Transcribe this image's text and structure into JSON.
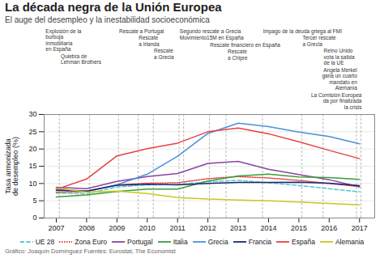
{
  "chart_data": {
    "type": "line",
    "title": "La década negra de la Unión Europea",
    "subtitle": "El auge del desempleo y la inestabilidad socioeconómica",
    "source": "Gráfico: Joaquín Domínguez  Fuentes: Eurostat, The Economist",
    "ylabel": "Tasa armonizada\nde desempleo (%)",
    "x": [
      2007,
      2008,
      2009,
      2010,
      2011,
      2012,
      2013,
      2014,
      2015,
      2016,
      2017
    ],
    "series": [
      {
        "name": "UE 28",
        "color": "#5bc8d0",
        "line_style": "dashed",
        "values": [
          7.2,
          7.0,
          9.0,
          9.6,
          9.7,
          10.5,
          10.9,
          10.2,
          9.4,
          8.5,
          7.6
        ]
      },
      {
        "name": "Zona Euro",
        "color": "#e84040",
        "line_style": "dotted",
        "values": [
          7.5,
          7.6,
          9.6,
          10.1,
          10.2,
          11.4,
          12.0,
          11.6,
          10.9,
          10.0,
          9.1
        ]
      },
      {
        "name": "Portugal",
        "color": "#8b44a0",
        "line_style": "solid",
        "values": [
          8.9,
          8.5,
          10.6,
          12.0,
          12.9,
          15.8,
          16.4,
          14.1,
          12.6,
          11.1,
          9.0
        ]
      },
      {
        "name": "Italia",
        "color": "#3a9e3a",
        "line_style": "solid",
        "values": [
          6.1,
          6.7,
          7.7,
          8.4,
          8.4,
          10.7,
          12.2,
          12.7,
          11.9,
          11.7,
          11.2
        ]
      },
      {
        "name": "Grecia",
        "color": "#4a90d9",
        "line_style": "solid",
        "values": [
          8.4,
          7.8,
          9.6,
          12.7,
          17.9,
          24.5,
          27.5,
          26.5,
          24.9,
          23.6,
          21.5
        ]
      },
      {
        "name": "Francia",
        "color": "#1a2870",
        "line_style": "solid",
        "values": [
          8.0,
          7.8,
          9.5,
          9.8,
          9.6,
          10.0,
          10.3,
          10.3,
          10.4,
          10.1,
          9.4
        ]
      },
      {
        "name": "España",
        "color": "#e84040",
        "line_style": "solid",
        "values": [
          8.3,
          11.3,
          18.0,
          20.1,
          21.7,
          25.0,
          26.1,
          24.4,
          22.1,
          19.6,
          17.2
        ]
      },
      {
        "name": "Alemania",
        "color": "#c8c820",
        "line_style": "solid",
        "values": [
          8.7,
          7.5,
          7.8,
          7.1,
          5.9,
          5.5,
          5.2,
          5.0,
          4.6,
          4.2,
          3.8
        ]
      }
    ],
    "xlim": [
      2006.6,
      2017.5
    ],
    "xticks": [
      2007,
      2008,
      2009,
      2010,
      2011,
      2012,
      2013,
      2014,
      2015,
      2016,
      2017
    ],
    "ylim": [
      0,
      30
    ],
    "yticks": [
      0,
      5,
      10,
      15,
      20,
      25,
      30
    ],
    "grid": true,
    "legend": "bottom",
    "vlines": [
      2007.1,
      2008.1,
      2011.05,
      2012.05,
      2013.8,
      2015.1,
      2015.8,
      2017.05,
      2009.05,
      2009.7,
      2010.2,
      2011.2,
      2012.6,
      2016.9
    ],
    "annotations": [
      {
        "x": 2011.07,
        "text": "Segundo rescate a Grecia"
      },
      {
        "x": 2011.07,
        "text": "Movimiento15M en España"
      },
      {
        "x": 2012.07,
        "text": "Rescate financiero en España"
      },
      {
        "x": 2013.82,
        "text": "Impago de la deuda griega al FMI"
      },
      {
        "x": 2015.12,
        "text": "Tercer rescate\na Grecia"
      },
      {
        "x": 2017.07,
        "text": "La Comisión Europea\nda por finalizada\nla crisis"
      },
      {
        "x": 2006.65,
        "text": "Explosión de la\nburbuja\ninmobiliaria\nen España"
      },
      {
        "x": 2007.15,
        "text": "Quiebra de\nLehman Brothers"
      },
      {
        "x": 2009.07,
        "text": "Rescate a Portugal"
      },
      {
        "x": 2009.72,
        "text": "Rescate\na Irlanda"
      },
      {
        "x": 2010.22,
        "text": "Rescate\na Grecia"
      },
      {
        "x": 2012.65,
        "text": "Rescate\na Chipre"
      },
      {
        "x": 2015.82,
        "text": "Reino Unido\nvota la salida\nde la UE"
      },
      {
        "x": 2016.92,
        "text": "Angela Merkel\ngana un cuarto\nmandato en\nAlemania"
      }
    ]
  }
}
